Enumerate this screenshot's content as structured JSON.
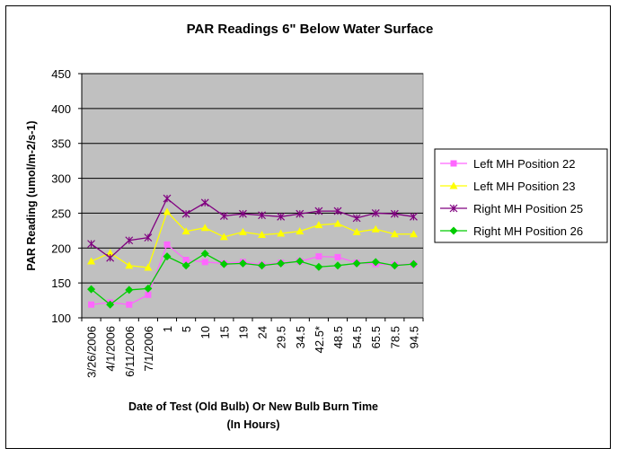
{
  "chart_data": {
    "type": "line",
    "title": "PAR Readings 6\" Below Water Surface",
    "xlabel": "Date of Test (Old Bulb) Or New Bulb Burn Time",
    "xlabel_line2": "(In Hours)",
    "ylabel": "PAR Reading (umol/m-2/s-1)",
    "ylim": [
      100,
      450
    ],
    "yticks": [
      "100",
      "150",
      "200",
      "250",
      "300",
      "350",
      "400",
      "450"
    ],
    "grid": true,
    "legend_position": "right",
    "plot_background": "#c0c0c0",
    "categories": [
      "3/26/2006",
      "4/1/2006",
      "6/11/2006",
      "7/1/2006",
      "1",
      "5",
      "10",
      "15",
      "19",
      "24",
      "29.5",
      "34.5",
      "42.5*",
      "48.5",
      "54.5",
      "65.5",
      "78.5",
      "94.5"
    ],
    "series": [
      {
        "name": "Left MH Position 22",
        "color": "#ff66ff",
        "marker": "square",
        "values": [
          119,
          122,
          119,
          133,
          205,
          183,
          180,
          178,
          180,
          176,
          179,
          181,
          188,
          187,
          179,
          177,
          176,
          177
        ]
      },
      {
        "name": "Left MH Position 23",
        "color": "#ffff00",
        "marker": "triangle",
        "values": [
          181,
          193,
          175,
          172,
          252,
          224,
          229,
          216,
          223,
          219,
          221,
          224,
          233,
          235,
          223,
          227,
          220,
          220
        ]
      },
      {
        "name": "Right MH Position 25",
        "color": "#800080",
        "marker": "star",
        "values": [
          206,
          186,
          211,
          215,
          271,
          249,
          265,
          246,
          249,
          247,
          245,
          249,
          253,
          253,
          243,
          250,
          249,
          245
        ]
      },
      {
        "name": "Right MH Position 26",
        "color": "#00cc00",
        "marker": "diamond",
        "values": [
          141,
          119,
          140,
          142,
          188,
          175,
          192,
          177,
          178,
          175,
          178,
          181,
          173,
          175,
          178,
          180,
          175,
          177
        ]
      }
    ]
  }
}
